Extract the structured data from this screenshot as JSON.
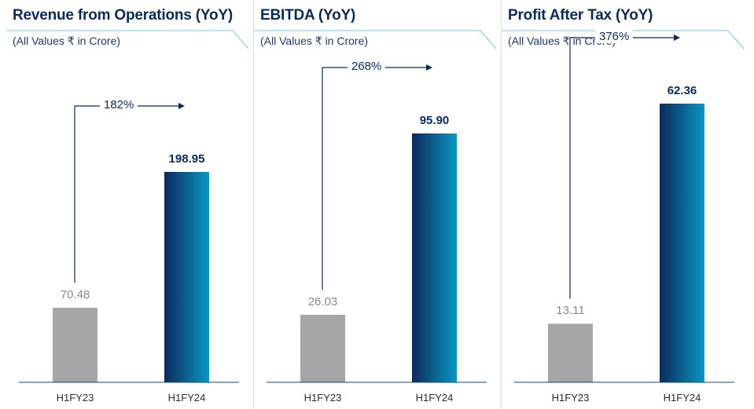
{
  "chart_data": [
    {
      "type": "bar",
      "title": "Revenue from Operations (YoY)",
      "subtitle": "(All Values ₹ in Crore)",
      "categories": [
        "H1FY23",
        "H1FY24"
      ],
      "values": [
        70.48,
        198.95
      ],
      "value_labels": [
        "70.48",
        "198.95"
      ],
      "growth_label": "182%",
      "colors": {
        "previous": "#a6a6a6",
        "current_top": "#0a97c4",
        "current_bottom": "#0b2a5b"
      }
    },
    {
      "type": "bar",
      "title": "EBITDA (YoY)",
      "subtitle": "(All Values ₹ in Crore)",
      "categories": [
        "H1FY23",
        "H1FY24"
      ],
      "values": [
        26.03,
        95.9
      ],
      "value_labels": [
        "26.03",
        "95.90"
      ],
      "growth_label": "268%",
      "colors": {
        "previous": "#a6a6a6",
        "current_top": "#0a97c4",
        "current_bottom": "#0b2a5b"
      }
    },
    {
      "type": "bar",
      "title": "Profit After Tax (YoY)",
      "subtitle": "(All Values ₹ in Crore)",
      "categories": [
        "H1FY23",
        "H1FY24"
      ],
      "values": [
        13.11,
        62.36
      ],
      "value_labels": [
        "13.11",
        "62.36"
      ],
      "growth_label": "376%",
      "colors": {
        "previous": "#a6a6a6",
        "current_top": "#0a97c4",
        "current_bottom": "#0b2a5b"
      }
    }
  ]
}
